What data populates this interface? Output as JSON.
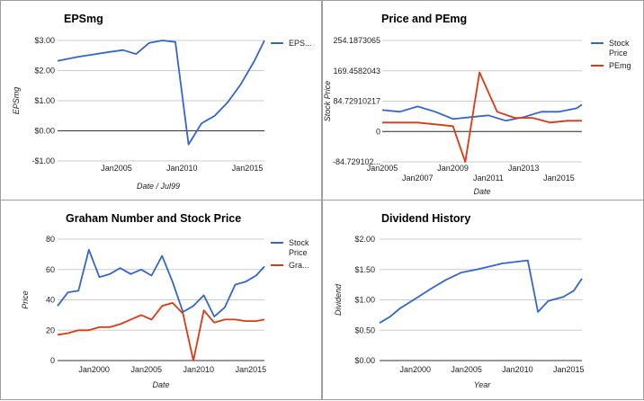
{
  "chart_data": [
    {
      "type": "line",
      "title": "EPSmg",
      "xlabel": "Date / Jul99",
      "ylabel": "EPSmg",
      "x_ticks": [
        {
          "label": "Jan2005",
          "x": 2005
        },
        {
          "label": "Jan2010",
          "x": 2010
        },
        {
          "label": "Jan2015",
          "x": 2015
        }
      ],
      "y_ticks": [
        {
          "label": "$3.00",
          "v": 3
        },
        {
          "label": "$2.00",
          "v": 2
        },
        {
          "label": "$1.00",
          "v": 1
        },
        {
          "label": "$0.00",
          "v": 0
        },
        {
          "label": "-$1.00",
          "v": -1
        }
      ],
      "xlim": [
        2000.5,
        2016.3
      ],
      "ylim": [
        -1,
        3
      ],
      "legend_position": "right",
      "series": [
        {
          "name": "EPS...",
          "color": "#3366cc",
          "x": [
            2000.5,
            2002,
            2003,
            2004.5,
            2005.5,
            2006.5,
            2007.5,
            2008.5,
            2009.5,
            2010.5,
            2011.5,
            2012.5,
            2013.5,
            2014.5,
            2015.5,
            2016.3
          ],
          "y": [
            2.32,
            2.45,
            2.52,
            2.62,
            2.68,
            2.55,
            2.92,
            3.0,
            2.95,
            -0.45,
            0.25,
            0.5,
            0.95,
            1.55,
            2.3,
            3.0
          ]
        }
      ]
    },
    {
      "type": "line",
      "title": "Price and PEmg",
      "xlabel": "Date",
      "ylabel": "Stock Price",
      "x_ticks": [
        {
          "label": "Jan2005",
          "x": 2005
        },
        {
          "label": "Jan2007",
          "x": 2007
        },
        {
          "label": "Jan2009",
          "x": 2009
        },
        {
          "label": "Jan2011",
          "x": 2011
        },
        {
          "label": "Jan2013",
          "x": 2013
        },
        {
          "label": "Jan2015",
          "x": 2015
        }
      ],
      "y_ticks": [
        {
          "label": "254.1873065",
          "v": 254.1873065
        },
        {
          "label": "169.4582043",
          "v": 169.4582043
        },
        {
          "label": "84.72910217",
          "v": 84.72910217
        },
        {
          "label": "0",
          "v": 0
        },
        {
          "label": "-84.729102...",
          "v": -84.72910217
        }
      ],
      "xlim": [
        2005,
        2016.3
      ],
      "ylim": [
        -84.72910217,
        254.1873065
      ],
      "legend_position": "right",
      "series": [
        {
          "name": "Stock Price",
          "color": "#3366cc",
          "x": [
            2005,
            2006,
            2007,
            2008,
            2009,
            2010,
            2011,
            2012,
            2013,
            2014,
            2015,
            2016,
            2016.3
          ],
          "y": [
            60,
            55,
            70,
            55,
            35,
            40,
            45,
            30,
            40,
            55,
            55,
            65,
            75
          ]
        },
        {
          "name": "PEmg",
          "color": "#dc3912",
          "x": [
            2005,
            2006,
            2007,
            2008,
            2009,
            2009.7,
            2010.5,
            2011.5,
            2012.5,
            2013.5,
            2014.5,
            2015.5,
            2016.3
          ],
          "y": [
            25,
            25,
            25,
            20,
            15,
            -85,
            165,
            55,
            38,
            38,
            25,
            30,
            30
          ]
        }
      ]
    },
    {
      "type": "line",
      "title": "Graham Number and Stock Price",
      "xlabel": "Date",
      "ylabel": "Price",
      "x_ticks": [
        {
          "label": "Jan2000",
          "x": 2000
        },
        {
          "label": "Jan2005",
          "x": 2005
        },
        {
          "label": "Jan2010",
          "x": 2010
        },
        {
          "label": "Jan2015",
          "x": 2015
        }
      ],
      "y_ticks": [
        {
          "label": "80",
          "v": 80
        },
        {
          "label": "60",
          "v": 60
        },
        {
          "label": "40",
          "v": 40
        },
        {
          "label": "20",
          "v": 20
        },
        {
          "label": "0",
          "v": 0
        }
      ],
      "xlim": [
        1996.5,
        2016.3
      ],
      "ylim": [
        0,
        80
      ],
      "legend_position": "right",
      "series": [
        {
          "name": "Stock Price",
          "color": "#3366cc",
          "x": [
            1996.5,
            1997.5,
            1998.5,
            1999.5,
            2000.5,
            2001.5,
            2002.5,
            2003.5,
            2004.5,
            2005.5,
            2006.5,
            2007.5,
            2008.5,
            2009.5,
            2010.5,
            2011.5,
            2012.5,
            2013.5,
            2014.5,
            2015.5,
            2016.3
          ],
          "y": [
            36,
            45,
            46,
            73,
            55,
            57,
            61,
            57,
            60,
            56,
            69,
            52,
            32,
            36,
            43,
            29,
            35,
            50,
            52,
            56,
            62
          ]
        },
        {
          "name": "Gra...",
          "color": "#dc3912",
          "x": [
            1996.5,
            1997.5,
            1998.5,
            1999.5,
            2000.5,
            2001.5,
            2002.5,
            2003.5,
            2004.5,
            2005.5,
            2006.5,
            2007.5,
            2008.5,
            2009.5,
            2010.5,
            2011.5,
            2012.5,
            2013.5,
            2014.5,
            2015.5,
            2016.3
          ],
          "y": [
            17,
            18,
            20,
            20,
            22,
            22,
            24,
            27,
            30,
            27,
            36,
            38,
            31,
            0,
            33,
            25,
            27,
            27,
            26,
            26,
            27
          ]
        }
      ]
    },
    {
      "type": "line",
      "title": "Dividend History",
      "xlabel": "Year",
      "ylabel": "Dividend",
      "x_ticks": [
        {
          "label": "Jan2000",
          "x": 2000
        },
        {
          "label": "Jan2005",
          "x": 2005
        },
        {
          "label": "Jan2010",
          "x": 2010
        },
        {
          "label": "Jan2015",
          "x": 2015
        }
      ],
      "y_ticks": [
        {
          "label": "$2.00",
          "v": 2
        },
        {
          "label": "$1.50",
          "v": 1.5
        },
        {
          "label": "$1.00",
          "v": 1
        },
        {
          "label": "$0.50",
          "v": 0.5
        },
        {
          "label": "$0.00",
          "v": 0
        }
      ],
      "xlim": [
        1996.5,
        2016.3
      ],
      "ylim": [
        0,
        2
      ],
      "series": [
        {
          "name": "",
          "color": "#3366cc",
          "x": [
            1996.5,
            1997.5,
            1998.5,
            2000,
            2001.5,
            2003,
            2004.5,
            2006,
            2007.5,
            2008.5,
            2011,
            2012,
            2013,
            2014.5,
            2015.5,
            2016.3
          ],
          "y": [
            0.62,
            0.72,
            0.86,
            1.02,
            1.18,
            1.33,
            1.45,
            1.5,
            1.56,
            1.6,
            1.65,
            0.8,
            0.98,
            1.05,
            1.15,
            1.35
          ]
        }
      ]
    }
  ]
}
